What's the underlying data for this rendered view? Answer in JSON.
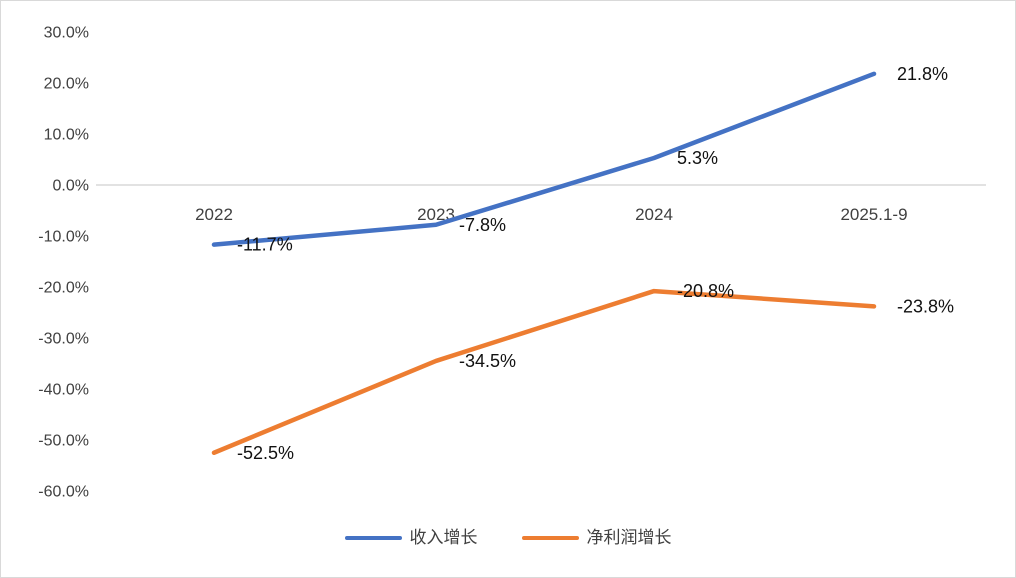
{
  "chart_data": {
    "type": "line",
    "categories": [
      "2022",
      "2023",
      "2024",
      "2025.1-9"
    ],
    "series": [
      {
        "name": "收入增长",
        "color": "#4472C4",
        "values": [
          -11.7,
          -7.8,
          5.3,
          21.8
        ],
        "point_labels": [
          "-11.7%",
          "-7.8%",
          "5.3%",
          "21.8%"
        ]
      },
      {
        "name": "净利润增长",
        "color": "#ED7D31",
        "values": [
          -52.5,
          -34.5,
          -20.8,
          -23.8
        ],
        "point_labels": [
          "-52.5%",
          "-34.5%",
          "-20.8%",
          "-23.8%"
        ]
      }
    ],
    "title": "",
    "xlabel": "",
    "ylabel": "",
    "ylim": [
      -60,
      30
    ],
    "y_tick_step": 10,
    "y_tick_labels": [
      "30.0%",
      "20.0%",
      "10.0%",
      "0.0%",
      "-10.0%",
      "-20.0%",
      "-30.0%",
      "-40.0%",
      "-50.0%",
      "-60.0%"
    ],
    "grid": false,
    "legend_position": "bottom",
    "colors": {
      "zero_line": "#D9D9D9",
      "axis_text": "#404040",
      "data_label_text": "#111111",
      "background": "#FFFFFF",
      "border": "#D9D9D9"
    }
  }
}
